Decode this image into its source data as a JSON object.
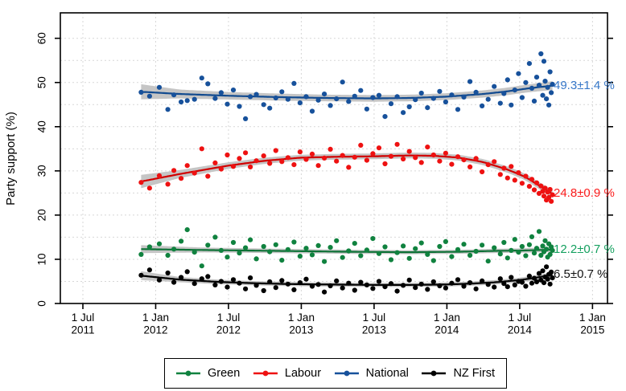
{
  "chart_data": {
    "type": "scatter",
    "title": "",
    "ylabel": "Party support (%)",
    "grid": true,
    "grid_color": "#d7d7d7",
    "band_color": "#c5c5c5",
    "x_axis": {
      "unit": "months since 1 Jul 2011",
      "ticks": [
        {
          "t": 0,
          "line1": "1 Jul",
          "line2": "2011"
        },
        {
          "t": 6,
          "line1": "1 Jan",
          "line2": "2012"
        },
        {
          "t": 12,
          "line1": "1 Jul",
          "line2": "2012"
        },
        {
          "t": 18,
          "line1": "1 Jan",
          "line2": "2013"
        },
        {
          "t": 24,
          "line1": "1 Jul",
          "line2": "2013"
        },
        {
          "t": 30,
          "line1": "1 Jan",
          "line2": "2014"
        },
        {
          "t": 36,
          "line1": "1 Jul",
          "line2": "2014"
        },
        {
          "t": 42,
          "line1": "1 Jan",
          "line2": "2015"
        }
      ]
    },
    "y_axis": {
      "ticks": [
        0,
        10,
        20,
        30,
        40,
        50,
        60
      ],
      "grid_step": 5,
      "range": [
        0,
        65.7
      ]
    },
    "legend_position": "bottom",
    "poll_dates_t": [
      4.8,
      5.5,
      6.3,
      7.0,
      7.5,
      8.1,
      8.6,
      9.2,
      9.8,
      10.3,
      10.9,
      11.4,
      11.9,
      12.4,
      12.9,
      13.4,
      13.8,
      14.3,
      14.9,
      15.4,
      15.9,
      16.4,
      16.9,
      17.4,
      17.9,
      18.4,
      18.9,
      19.4,
      19.9,
      20.4,
      20.9,
      21.4,
      21.9,
      22.4,
      22.9,
      23.4,
      23.9,
      24.4,
      24.9,
      25.4,
      25.9,
      26.4,
      26.9,
      27.4,
      27.9,
      28.4,
      28.9,
      29.4,
      29.9,
      30.4,
      30.9,
      31.4,
      31.9,
      32.4,
      32.9,
      33.4,
      33.9,
      34.4,
      34.7,
      35.0,
      35.3,
      35.6,
      35.9,
      36.2,
      36.5,
      36.8,
      37.0,
      37.2,
      37.4,
      37.6,
      37.75,
      37.9,
      38.0,
      38.1,
      38.2,
      38.3,
      38.4,
      38.5,
      38.6,
      38.7
    ],
    "series": [
      {
        "name": "Green",
        "color": "#10823f",
        "line_color": "#0d7136",
        "label": "12.2±0.7 %",
        "label_color": "#14a05f",
        "label_v": 12.2,
        "values": [
          11.1,
          12.8,
          13.5,
          10.9,
          12.3,
          14.1,
          16.7,
          11.6,
          8.5,
          13.2,
          15.0,
          12.0,
          10.5,
          13.8,
          11.4,
          12.6,
          14.4,
          10.1,
          12.9,
          11.7,
          13.3,
          9.8,
          12.2,
          13.9,
          10.7,
          12.5,
          11.0,
          13.1,
          9.5,
          12.7,
          14.2,
          10.4,
          11.9,
          13.6,
          10.8,
          12.1,
          14.7,
          11.3,
          12.8,
          9.9,
          11.5,
          13.0,
          10.2,
          12.4,
          13.7,
          11.1,
          9.7,
          12.9,
          14.0,
          10.6,
          12.2,
          13.4,
          10.9,
          11.8,
          13.2,
          9.6,
          12.6,
          11.2,
          13.8,
          10.3,
          12.0,
          14.5,
          11.6,
          12.9,
          10.8,
          13.3,
          15.1,
          11.4,
          12.5,
          16.3,
          10.9,
          13.0,
          11.7,
          14.2,
          12.3,
          10.5,
          13.5,
          11.1,
          12.8,
          12.0
        ],
        "trend": [
          [
            4.8,
            12.3
          ],
          [
            10,
            12.1
          ],
          [
            16,
            11.9
          ],
          [
            22,
            11.7
          ],
          [
            27,
            11.6
          ],
          [
            31,
            11.7
          ],
          [
            34,
            11.9
          ],
          [
            36.5,
            12.0
          ],
          [
            38.7,
            12.2
          ]
        ],
        "band_half": [
          [
            4.8,
            0.9
          ],
          [
            10,
            0.55
          ],
          [
            16,
            0.5
          ],
          [
            24,
            0.45
          ],
          [
            31,
            0.45
          ],
          [
            36,
            0.5
          ],
          [
            38.7,
            0.55
          ]
        ]
      },
      {
        "name": "Labour",
        "color": "#ee1111",
        "line_color": "#d00000",
        "label": "24.8±0.9 %",
        "label_color": "#fb1b1b",
        "label_v": 24.8,
        "values": [
          27.4,
          26.1,
          28.9,
          27.0,
          30.1,
          28.3,
          31.2,
          29.5,
          35.0,
          28.8,
          31.8,
          30.4,
          33.6,
          31.0,
          32.8,
          34.1,
          30.9,
          32.3,
          33.4,
          31.7,
          34.6,
          32.1,
          33.0,
          31.4,
          34.3,
          32.6,
          33.8,
          31.2,
          32.9,
          34.9,
          32.2,
          33.5,
          30.8,
          33.1,
          35.8,
          32.4,
          33.9,
          35.2,
          31.6,
          33.3,
          36.0,
          32.7,
          34.4,
          33.0,
          31.9,
          35.4,
          33.6,
          32.2,
          34.0,
          31.5,
          33.2,
          32.5,
          30.9,
          32.8,
          29.8,
          31.4,
          32.1,
          29.2,
          30.6,
          28.4,
          31.0,
          27.9,
          29.6,
          27.2,
          28.8,
          26.5,
          28.1,
          25.7,
          27.3,
          24.9,
          26.6,
          25.4,
          24.3,
          26.1,
          23.4,
          25.2,
          24.0,
          25.8,
          23.1,
          24.6
        ],
        "trend": [
          [
            4.8,
            27.6
          ],
          [
            8,
            29.3
          ],
          [
            12,
            31.2
          ],
          [
            15,
            32.3
          ],
          [
            18,
            33.0
          ],
          [
            21,
            33.2
          ],
          [
            24,
            33.3
          ],
          [
            27,
            33.5
          ],
          [
            29,
            33.4
          ],
          [
            31,
            33.0
          ],
          [
            33,
            32.0
          ],
          [
            35,
            30.3
          ],
          [
            36.5,
            28.6
          ],
          [
            37.7,
            26.5
          ],
          [
            38.7,
            24.8
          ]
        ],
        "band_half": [
          [
            4.8,
            1.5
          ],
          [
            8,
            0.9
          ],
          [
            12,
            0.75
          ],
          [
            18,
            0.65
          ],
          [
            24,
            0.65
          ],
          [
            30,
            0.65
          ],
          [
            34,
            0.7
          ],
          [
            37,
            0.75
          ],
          [
            38.7,
            0.85
          ]
        ]
      },
      {
        "name": "National",
        "color": "#17519b",
        "line_color": "#114a8f",
        "label": "49.3±1.4 %",
        "label_color": "#3677c8",
        "label_v": 49.3,
        "values": [
          47.8,
          46.9,
          48.9,
          43.9,
          47.2,
          45.6,
          45.9,
          46.2,
          51.0,
          49.7,
          46.4,
          47.7,
          45.1,
          48.3,
          44.6,
          41.8,
          46.8,
          47.3,
          45.0,
          44.2,
          46.5,
          47.9,
          46.2,
          49.8,
          45.4,
          46.8,
          43.5,
          46.0,
          47.4,
          44.8,
          46.3,
          50.1,
          45.7,
          46.9,
          48.2,
          44.0,
          46.6,
          47.1,
          42.3,
          45.2,
          46.8,
          43.2,
          44.5,
          46.1,
          47.6,
          44.3,
          46.4,
          48.0,
          45.6,
          47.2,
          43.9,
          46.7,
          50.2,
          47.8,
          44.7,
          46.2,
          49.1,
          45.3,
          47.5,
          50.6,
          44.9,
          48.3,
          52.0,
          46.6,
          50.0,
          54.3,
          48.7,
          45.8,
          51.2,
          49.4,
          56.5,
          47.1,
          54.8,
          50.3,
          46.3,
          48.9,
          44.9,
          52.4,
          47.7,
          49.6
        ],
        "trend": [
          [
            4.8,
            47.9
          ],
          [
            8,
            47.4
          ],
          [
            12,
            47.0
          ],
          [
            16,
            46.7
          ],
          [
            20,
            46.5
          ],
          [
            24,
            46.4
          ],
          [
            27,
            46.5
          ],
          [
            30,
            46.8
          ],
          [
            33,
            47.4
          ],
          [
            35,
            48.0
          ],
          [
            36.5,
            48.6
          ],
          [
            38.7,
            49.3
          ]
        ],
        "band_half": [
          [
            4.8,
            1.7
          ],
          [
            8,
            1.0
          ],
          [
            12,
            0.85
          ],
          [
            16,
            0.8
          ],
          [
            20,
            0.75
          ],
          [
            24,
            0.75
          ],
          [
            28,
            0.75
          ],
          [
            32,
            0.8
          ],
          [
            35,
            0.85
          ],
          [
            37,
            0.9
          ],
          [
            38.7,
            1.0
          ]
        ]
      },
      {
        "name": "NZ First",
        "color": "#000000",
        "line_color": "#000000",
        "label": "6.5±0.7 %",
        "label_color": "#111111",
        "label_v": 6.5,
        "values": [
          6.4,
          7.6,
          5.3,
          6.9,
          4.8,
          5.9,
          7.2,
          4.5,
          5.6,
          6.1,
          4.2,
          5.0,
          3.7,
          5.4,
          4.6,
          3.3,
          5.8,
          4.1,
          2.9,
          4.9,
          3.6,
          5.2,
          4.4,
          3.1,
          4.7,
          5.5,
          3.9,
          4.3,
          2.6,
          4.0,
          5.1,
          3.5,
          4.6,
          3.0,
          4.8,
          4.2,
          3.4,
          5.0,
          3.8,
          4.5,
          2.8,
          4.1,
          5.3,
          3.6,
          4.4,
          3.2,
          4.9,
          4.0,
          3.5,
          4.6,
          5.4,
          3.9,
          4.7,
          3.3,
          5.1,
          4.3,
          3.7,
          5.6,
          4.5,
          3.8,
          5.9,
          4.2,
          5.0,
          4.8,
          3.9,
          6.2,
          4.6,
          5.7,
          4.9,
          6.8,
          5.3,
          7.4,
          4.7,
          6.0,
          8.3,
          5.5,
          6.6,
          4.4,
          7.1,
          5.8
        ],
        "trend": [
          [
            4.8,
            6.3
          ],
          [
            8,
            5.4
          ],
          [
            11,
            4.9
          ],
          [
            14,
            4.6
          ],
          [
            17,
            4.4
          ],
          [
            20,
            4.3
          ],
          [
            24,
            4.2
          ],
          [
            27,
            4.2
          ],
          [
            30,
            4.3
          ],
          [
            32,
            4.5
          ],
          [
            34,
            4.8
          ],
          [
            36,
            5.3
          ],
          [
            37.5,
            5.9
          ],
          [
            38.7,
            6.5
          ]
        ],
        "band_half": [
          [
            4.8,
            1.0
          ],
          [
            8,
            0.6
          ],
          [
            12,
            0.5
          ],
          [
            18,
            0.45
          ],
          [
            24,
            0.45
          ],
          [
            30,
            0.45
          ],
          [
            34,
            0.5
          ],
          [
            37,
            0.55
          ],
          [
            38.7,
            0.6
          ]
        ]
      }
    ]
  }
}
